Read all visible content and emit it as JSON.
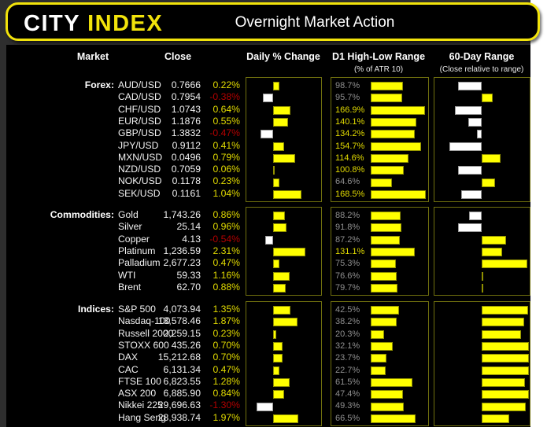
{
  "header": {
    "logo_city": "CITY",
    "logo_index": "INDEX",
    "title": "Overnight Market Action"
  },
  "columns": {
    "market": "Market",
    "close": "Close",
    "daily": "Daily % Change",
    "d1": "D1 High-Low Range",
    "d1_sub": "(% of ATR 10)",
    "range60": "60-Day Range",
    "range60_sub": "(Close relative to range)"
  },
  "colors": {
    "accent_yellow": "#f2e30b",
    "bar_yellow": "#ffff00",
    "bar_white": "#ffffff",
    "positive_text": "#e3dc00",
    "negative_text": "#b30000",
    "muted_label": "#8f8f8f",
    "box_border": "#70700e",
    "panel_bg": "#000000"
  },
  "chart_data": {
    "type": "table",
    "title": "Overnight Market Action",
    "notes": "Daily % Change: diverging bars from zero (yellow positive, white negative). D1 High-Low Range: bar length proportional to % of ATR10. 60-Day Range: bar drawn from range midpoint to close position (yellow above midpoint, white below), range_pos is % of 60-day range (0=low, 100=high, estimated).",
    "sections": [
      {
        "label": "Forex:",
        "daily_scale": 36,
        "d1_full": 190,
        "rows": [
          {
            "market": "AUD/USD",
            "close": "0.7666",
            "daily_pct": 0.22,
            "daily_label": "0.22%",
            "d1_pct": 98.7,
            "d1_label": "98.7%",
            "range_pos": 25
          },
          {
            "market": "CAD/USD",
            "close": "0.7954",
            "daily_pct": -0.38,
            "daily_label": "-0.38%",
            "d1_pct": 95.7,
            "d1_label": "95.7%",
            "range_pos": 62
          },
          {
            "market": "CHF/USD",
            "close": "1.0743",
            "daily_pct": 0.64,
            "daily_label": "0.64%",
            "d1_pct": 166.9,
            "d1_label": "166.9%",
            "range_pos": 22
          },
          {
            "market": "EUR/USD",
            "close": "1.1876",
            "daily_pct": 0.55,
            "daily_label": "0.55%",
            "d1_pct": 140.1,
            "d1_label": "140.1%",
            "range_pos": 36
          },
          {
            "market": "GBP/USD",
            "close": "1.3832",
            "daily_pct": -0.47,
            "daily_label": "-0.47%",
            "d1_pct": 134.2,
            "d1_label": "134.2%",
            "range_pos": 45
          },
          {
            "market": "JPY/USD",
            "close": "0.9112",
            "daily_pct": 0.41,
            "daily_label": "0.41%",
            "d1_pct": 154.7,
            "d1_label": "154.7%",
            "range_pos": 16
          },
          {
            "market": "MXN/USD",
            "close": "0.0496",
            "daily_pct": 0.79,
            "daily_label": "0.79%",
            "d1_pct": 114.6,
            "d1_label": "114.6%",
            "range_pos": 70
          },
          {
            "market": "NZD/USD",
            "close": "0.7059",
            "daily_pct": 0.06,
            "daily_label": "0.06%",
            "d1_pct": 100.8,
            "d1_label": "100.8%",
            "range_pos": 25
          },
          {
            "market": "NOK/USD",
            "close": "0.1178",
            "daily_pct": 0.23,
            "daily_label": "0.23%",
            "d1_pct": 64.6,
            "d1_label": "64.6%",
            "range_pos": 64
          },
          {
            "market": "SEK/USD",
            "close": "0.1161",
            "daily_pct": 1.04,
            "daily_label": "1.04%",
            "d1_pct": 168.5,
            "d1_label": "168.5%",
            "range_pos": 28
          }
        ]
      },
      {
        "label": "Commodities:",
        "daily_scale": 18.5,
        "d1_full": 185,
        "rows": [
          {
            "market": "Gold",
            "close": "1,743.26",
            "daily_pct": 0.86,
            "daily_label": "0.86%",
            "d1_pct": 88.2,
            "d1_label": "88.2%",
            "range_pos": 37
          },
          {
            "market": "Silver",
            "close": "25.14",
            "daily_pct": 0.96,
            "daily_label": "0.96%",
            "d1_pct": 91.8,
            "d1_label": "91.8%",
            "range_pos": 25
          },
          {
            "market": "Copper",
            "close": "4.13",
            "daily_pct": -0.54,
            "daily_label": "-0.54%",
            "d1_pct": 87.2,
            "d1_label": "87.2%",
            "range_pos": 76
          },
          {
            "market": "Platinum",
            "close": "1,236.59",
            "daily_pct": 2.31,
            "daily_label": "2.31%",
            "d1_pct": 131.1,
            "d1_label": "131.1%",
            "range_pos": 72
          },
          {
            "market": "Palladium",
            "close": "2,677.23",
            "daily_pct": 0.47,
            "daily_label": "0.47%",
            "d1_pct": 75.3,
            "d1_label": "75.3%",
            "range_pos": 98
          },
          {
            "market": "WTI",
            "close": "59.33",
            "daily_pct": 1.16,
            "daily_label": "1.16%",
            "d1_pct": 76.6,
            "d1_label": "76.6%",
            "range_pos": 52
          },
          {
            "market": "Brent",
            "close": "62.70",
            "daily_pct": 0.88,
            "daily_label": "0.88%",
            "d1_pct": 79.7,
            "d1_label": "79.7%",
            "range_pos": 52
          }
        ]
      },
      {
        "label": "Indices:",
        "daily_scale": 17,
        "d1_full": 92,
        "rows": [
          {
            "market": "S&P 500",
            "close": "4,073.94",
            "daily_pct": 1.35,
            "daily_label": "1.35%",
            "d1_pct": 42.5,
            "d1_label": "42.5%",
            "range_pos": 99
          },
          {
            "market": "Nasdaq-100",
            "close": "13,578.46",
            "daily_pct": 1.87,
            "daily_label": "1.87%",
            "d1_pct": 38.2,
            "d1_label": "38.2%",
            "range_pos": 95
          },
          {
            "market": "Russell 2000",
            "close": "2,259.15",
            "daily_pct": 0.23,
            "daily_label": "0.23%",
            "d1_pct": 20.3,
            "d1_label": "20.3%",
            "range_pos": 92
          },
          {
            "market": "STOXX 600",
            "close": "435.26",
            "daily_pct": 0.7,
            "daily_label": "0.70%",
            "d1_pct": 32.1,
            "d1_label": "32.1%",
            "range_pos": 100
          },
          {
            "market": "DAX",
            "close": "15,212.68",
            "daily_pct": 0.7,
            "daily_label": "0.70%",
            "d1_pct": 23.7,
            "d1_label": "23.7%",
            "range_pos": 100
          },
          {
            "market": "CAC",
            "close": "6,131.34",
            "daily_pct": 0.47,
            "daily_label": "0.47%",
            "d1_pct": 22.7,
            "d1_label": "22.7%",
            "range_pos": 100
          },
          {
            "market": "FTSE 100",
            "close": "6,823.55",
            "daily_pct": 1.28,
            "daily_label": "1.28%",
            "d1_pct": 61.5,
            "d1_label": "61.5%",
            "range_pos": 96
          },
          {
            "market": "ASX 200",
            "close": "6,885.90",
            "daily_pct": 0.84,
            "daily_label": "0.84%",
            "d1_pct": 47.4,
            "d1_label": "47.4%",
            "range_pos": 100
          },
          {
            "market": "Nikkei 225",
            "close": "29,696.63",
            "daily_pct": -1.3,
            "daily_label": "-1.30%",
            "d1_pct": 49.3,
            "d1_label": "49.3%",
            "range_pos": 97
          },
          {
            "market": "Hang Seng",
            "close": "28,938.74",
            "daily_pct": 1.97,
            "daily_label": "1.97%",
            "d1_pct": 66.5,
            "d1_label": "66.5%",
            "range_pos": 79
          }
        ]
      }
    ]
  }
}
